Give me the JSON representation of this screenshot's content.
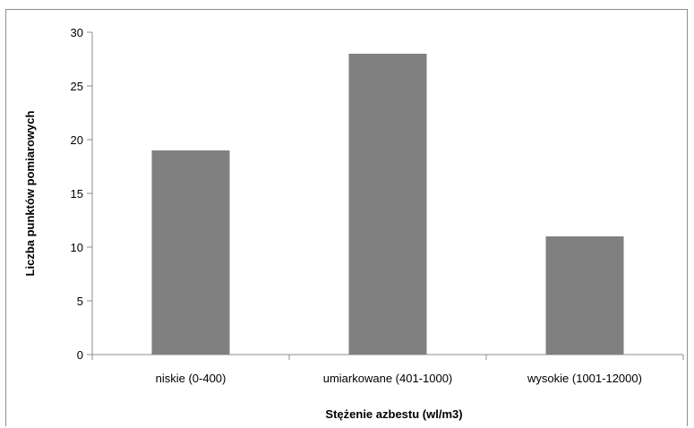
{
  "chart_data": {
    "type": "bar",
    "title": "",
    "xlabel": "Stężenie azbestu (wl/m3)",
    "ylabel": "Liczba punktów pomiarowych",
    "categories": [
      "niskie (0-400)",
      "umiarkowane (401-1000)",
      "wysokie (1001-12000)"
    ],
    "values": [
      19,
      28,
      11
    ],
    "ylim": [
      0,
      30
    ],
    "yticks": [
      "0",
      "5",
      "10",
      "15",
      "20",
      "25",
      "30"
    ],
    "grid": false,
    "legend": "none",
    "bar_color": "#808080"
  }
}
